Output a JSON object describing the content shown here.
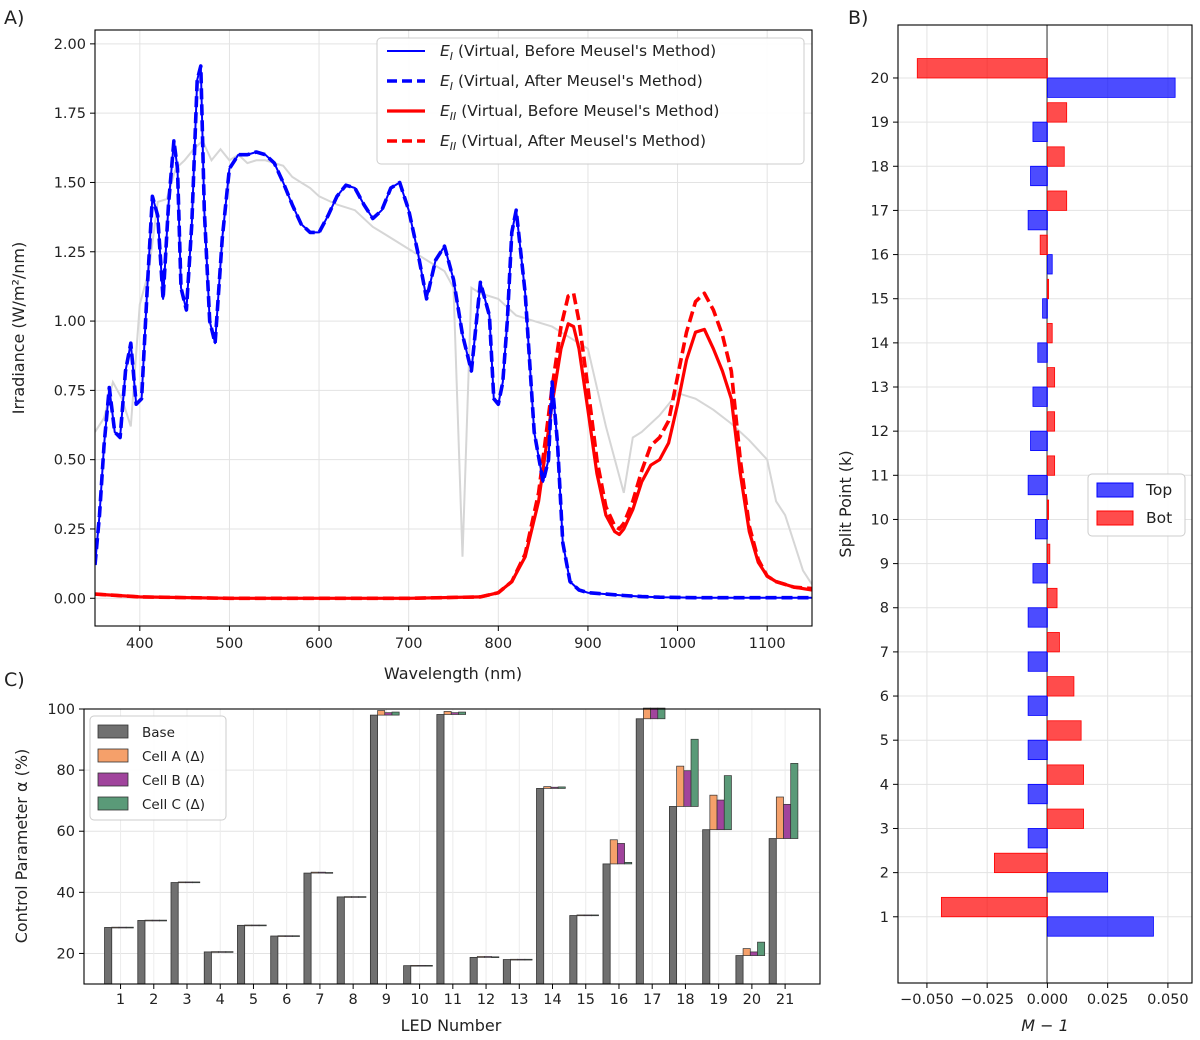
{
  "panels": {
    "a": "A)",
    "b": "B)",
    "c": "C)"
  },
  "chart_data": [
    {
      "type": "line",
      "panel": "A)",
      "xlabel": "Wavelength (nm)",
      "ylabel": "Irradiance (W/m²/nm)",
      "xlim": [
        350,
        1150
      ],
      "ylim": [
        -0.1,
        2.05
      ],
      "xticks": [
        400,
        500,
        600,
        700,
        800,
        900,
        1000,
        1100
      ],
      "yticks": [
        0.0,
        0.25,
        0.5,
        0.75,
        1.0,
        1.25,
        1.5,
        1.75,
        2.0
      ],
      "ytick_labels": [
        "0.00",
        "0.25",
        "0.50",
        "0.75",
        "1.00",
        "1.25",
        "1.50",
        "1.75",
        "2.00"
      ],
      "grid": true,
      "legend_position": "top-right",
      "reference_spectrum": {
        "color": "#d6d6d6",
        "x": [
          350,
          360,
          370,
          380,
          390,
          400,
          410,
          420,
          430,
          440,
          450,
          460,
          470,
          480,
          490,
          500,
          510,
          520,
          530,
          540,
          550,
          560,
          570,
          580,
          590,
          600,
          620,
          640,
          660,
          680,
          700,
          720,
          740,
          750,
          760,
          770,
          780,
          800,
          820,
          840,
          860,
          880,
          900,
          920,
          940,
          950,
          960,
          980,
          1000,
          1020,
          1040,
          1060,
          1080,
          1100,
          1110,
          1120,
          1130,
          1140,
          1150
        ],
        "y": [
          0.6,
          0.65,
          0.78,
          0.72,
          0.62,
          1.06,
          1.18,
          1.43,
          1.44,
          1.55,
          1.58,
          1.62,
          1.65,
          1.58,
          1.62,
          1.58,
          1.6,
          1.57,
          1.58,
          1.58,
          1.57,
          1.56,
          1.52,
          1.5,
          1.48,
          1.45,
          1.42,
          1.4,
          1.34,
          1.3,
          1.26,
          1.22,
          1.18,
          1.12,
          0.15,
          1.12,
          1.1,
          1.08,
          1.02,
          1.0,
          0.98,
          0.94,
          0.9,
          0.62,
          0.38,
          0.58,
          0.6,
          0.66,
          0.74,
          0.72,
          0.68,
          0.63,
          0.57,
          0.5,
          0.35,
          0.3,
          0.2,
          0.1,
          0.05
        ]
      },
      "legend": [
        "E_I (Virtual, Before Meusel's Method)",
        "E_I (Virtual, After Meusel's Method)",
        "E_II (Virtual, Before Meusel's Method)",
        "E_II (Virtual, After Meusel's Method)"
      ],
      "legend_display": [
        {
          "sym": "E",
          "sub": "I",
          "rest": " (Virtual, Before Meusel's Method)"
        },
        {
          "sym": "E",
          "sub": "I",
          "rest": " (Virtual, After Meusel's Method)"
        },
        {
          "sym": "E",
          "sub": "II",
          "rest": " (Virtual, Before Meusel's Method)"
        },
        {
          "sym": "E",
          "sub": "II",
          "rest": " (Virtual, After Meusel's Method)"
        }
      ],
      "series": [
        {
          "color": "#0000ff",
          "style": "solid",
          "x": [
            350,
            355,
            360,
            366,
            372,
            378,
            384,
            390,
            396,
            402,
            408,
            414,
            420,
            426,
            432,
            438,
            442,
            446,
            452,
            458,
            464,
            468,
            472,
            478,
            484,
            492,
            500,
            510,
            520,
            530,
            540,
            550,
            560,
            570,
            580,
            590,
            600,
            610,
            620,
            630,
            640,
            650,
            660,
            670,
            680,
            690,
            700,
            710,
            720,
            730,
            740,
            750,
            760,
            770,
            780,
            790,
            795,
            800,
            805,
            810,
            815,
            820,
            830,
            840,
            850,
            856,
            860,
            866,
            872,
            880,
            890,
            900,
            920,
            940,
            960,
            980,
            1000,
            1020,
            1050,
            1080,
            1100,
            1150
          ],
          "y": [
            0.12,
            0.3,
            0.55,
            0.76,
            0.6,
            0.58,
            0.82,
            0.92,
            0.7,
            0.72,
            1.1,
            1.45,
            1.38,
            1.08,
            1.42,
            1.65,
            1.55,
            1.12,
            1.04,
            1.35,
            1.87,
            1.92,
            1.4,
            1.0,
            0.92,
            1.3,
            1.55,
            1.6,
            1.6,
            1.61,
            1.6,
            1.57,
            1.5,
            1.42,
            1.35,
            1.32,
            1.32,
            1.38,
            1.45,
            1.49,
            1.48,
            1.42,
            1.37,
            1.4,
            1.48,
            1.5,
            1.4,
            1.25,
            1.08,
            1.22,
            1.27,
            1.15,
            0.95,
            0.82,
            1.14,
            1.02,
            0.72,
            0.7,
            0.78,
            1.0,
            1.32,
            1.4,
            1.1,
            0.6,
            0.42,
            0.5,
            0.78,
            0.56,
            0.2,
            0.06,
            0.03,
            0.02,
            0.015,
            0.01,
            0.006,
            0.004,
            0.003,
            0.002,
            0.002,
            0.002,
            0.002,
            0.002
          ]
        },
        {
          "color": "#0000ff",
          "style": "dashed",
          "x": [
            350,
            355,
            360,
            366,
            372,
            378,
            384,
            390,
            396,
            402,
            408,
            414,
            420,
            426,
            432,
            438,
            442,
            446,
            452,
            458,
            464,
            468,
            472,
            478,
            484,
            492,
            500,
            510,
            520,
            530,
            540,
            550,
            560,
            570,
            580,
            590,
            600,
            610,
            620,
            630,
            640,
            650,
            660,
            670,
            680,
            690,
            700,
            710,
            720,
            730,
            740,
            750,
            760,
            770,
            780,
            790,
            795,
            800,
            805,
            810,
            815,
            820,
            830,
            840,
            850,
            856,
            860,
            866,
            872,
            880,
            890,
            900,
            920,
            940,
            960,
            980,
            1000,
            1020,
            1050,
            1080,
            1100,
            1150
          ],
          "y": [
            0.12,
            0.3,
            0.55,
            0.76,
            0.6,
            0.58,
            0.82,
            0.92,
            0.7,
            0.72,
            1.1,
            1.45,
            1.38,
            1.08,
            1.42,
            1.65,
            1.55,
            1.12,
            1.04,
            1.35,
            1.87,
            1.92,
            1.4,
            1.0,
            0.92,
            1.3,
            1.55,
            1.6,
            1.6,
            1.61,
            1.6,
            1.57,
            1.5,
            1.42,
            1.35,
            1.32,
            1.32,
            1.38,
            1.45,
            1.49,
            1.48,
            1.42,
            1.37,
            1.4,
            1.48,
            1.5,
            1.4,
            1.25,
            1.08,
            1.22,
            1.27,
            1.15,
            0.95,
            0.82,
            1.14,
            1.02,
            0.72,
            0.7,
            0.78,
            1.0,
            1.32,
            1.4,
            1.1,
            0.6,
            0.42,
            0.5,
            0.78,
            0.56,
            0.2,
            0.06,
            0.03,
            0.02,
            0.015,
            0.01,
            0.006,
            0.004,
            0.003,
            0.002,
            0.002,
            0.002,
            0.002,
            0.002
          ]
        },
        {
          "color": "#ff0000",
          "style": "solid",
          "x": [
            350,
            400,
            500,
            600,
            700,
            780,
            800,
            815,
            830,
            845,
            860,
            870,
            878,
            884,
            890,
            900,
            910,
            920,
            930,
            935,
            940,
            950,
            960,
            970,
            980,
            990,
            1000,
            1010,
            1020,
            1030,
            1040,
            1050,
            1060,
            1070,
            1080,
            1090,
            1100,
            1110,
            1120,
            1130,
            1150
          ],
          "y": [
            0.015,
            0.005,
            0.0,
            0.0,
            0.0,
            0.005,
            0.02,
            0.06,
            0.15,
            0.35,
            0.7,
            0.9,
            0.99,
            0.98,
            0.9,
            0.68,
            0.45,
            0.3,
            0.24,
            0.23,
            0.25,
            0.32,
            0.42,
            0.48,
            0.5,
            0.56,
            0.7,
            0.86,
            0.96,
            0.97,
            0.9,
            0.82,
            0.72,
            0.45,
            0.24,
            0.13,
            0.08,
            0.06,
            0.05,
            0.04,
            0.03
          ]
        },
        {
          "color": "#ff0000",
          "style": "dashed",
          "x": [
            350,
            400,
            500,
            600,
            700,
            780,
            800,
            815,
            830,
            845,
            860,
            870,
            878,
            884,
            890,
            900,
            910,
            920,
            930,
            935,
            940,
            950,
            960,
            970,
            980,
            990,
            1000,
            1010,
            1020,
            1030,
            1040,
            1050,
            1060,
            1070,
            1080,
            1090,
            1100,
            1110,
            1120,
            1130,
            1150
          ],
          "y": [
            0.015,
            0.005,
            0.0,
            0.0,
            0.0,
            0.005,
            0.02,
            0.06,
            0.16,
            0.38,
            0.76,
            0.98,
            1.09,
            1.1,
            1.0,
            0.76,
            0.5,
            0.33,
            0.26,
            0.25,
            0.27,
            0.35,
            0.46,
            0.55,
            0.58,
            0.64,
            0.8,
            0.96,
            1.07,
            1.1,
            1.04,
            0.95,
            0.82,
            0.5,
            0.26,
            0.14,
            0.08,
            0.06,
            0.05,
            0.04,
            0.035
          ]
        }
      ]
    },
    {
      "type": "bar",
      "orientation": "horizontal",
      "panel": "B)",
      "xlabel": "M − 1",
      "ylabel": "Split Point (k)",
      "xlim": [
        -0.062,
        0.06
      ],
      "ylim": [
        -0.5,
        21.2
      ],
      "xticks": [
        -0.05,
        -0.025,
        0.0,
        0.025,
        0.05
      ],
      "xtick_labels": [
        "−0.050",
        "−0.025",
        "0.000",
        "0.025",
        "0.050"
      ],
      "yticks": [
        1,
        2,
        3,
        4,
        5,
        6,
        7,
        8,
        9,
        10,
        11,
        12,
        13,
        14,
        15,
        16,
        17,
        18,
        19,
        20
      ],
      "grid": true,
      "legend_position": "center-right",
      "categories": [
        1,
        2,
        3,
        4,
        5,
        6,
        7,
        8,
        9,
        10,
        11,
        12,
        13,
        14,
        15,
        16,
        17,
        18,
        19,
        20
      ],
      "series": [
        {
          "name": "Top",
          "color": "#0000ff",
          "offset": -0.22,
          "values": [
            0.044,
            0.025,
            -0.008,
            -0.008,
            -0.008,
            -0.008,
            -0.008,
            -0.008,
            -0.006,
            -0.005,
            -0.008,
            -0.007,
            -0.006,
            -0.004,
            -0.002,
            0.002,
            -0.008,
            -0.007,
            -0.006,
            0.053
          ]
        },
        {
          "name": "Bot",
          "color": "#ff0000",
          "offset": 0.22,
          "values": [
            -0.044,
            -0.022,
            0.015,
            0.015,
            0.014,
            0.011,
            0.005,
            0.004,
            0.001,
            0.0005,
            0.003,
            0.003,
            0.003,
            0.002,
            0.0005,
            -0.003,
            0.008,
            0.007,
            0.008,
            -0.054
          ]
        }
      ]
    },
    {
      "type": "bar",
      "panel": "C)",
      "xlabel": "LED Number",
      "ylabel": "Control Parameter α (%)",
      "ylim": [
        10,
        100
      ],
      "yticks": [
        20,
        40,
        60,
        80,
        100
      ],
      "grid": true,
      "legend_position": "top-left",
      "categories": [
        "1",
        "2",
        "3",
        "4",
        "5",
        "6",
        "7",
        "8",
        "9",
        "10",
        "11",
        "12",
        "13",
        "14",
        "15",
        "16",
        "17",
        "18",
        "19",
        "20",
        "21"
      ],
      "series": [
        {
          "name": "Base",
          "color": "#707070",
          "values": [
            28.5,
            30.8,
            43.2,
            20.5,
            29.2,
            25.7,
            46.3,
            38.5,
            98.0,
            16.0,
            98.2,
            18.7,
            18.0,
            74.0,
            32.4,
            49.3,
            96.8,
            68.1,
            60.5,
            19.3,
            57.6
          ]
        },
        {
          "name": "Cell A (Δ)",
          "color": "#f5a06a",
          "values": [
            0.1,
            0.1,
            0.2,
            0.1,
            0.1,
            0.1,
            0.3,
            0.1,
            1.5,
            0.1,
            1.0,
            0.3,
            0.1,
            0.6,
            0.2,
            7.9,
            5.0,
            13.2,
            11.3,
            2.3,
            13.6
          ]
        },
        {
          "name": "Cell B (Δ)",
          "color": "#a0449c",
          "values": [
            0.1,
            0.1,
            0.2,
            0.1,
            0.1,
            0.1,
            0.3,
            0.1,
            0.8,
            0.1,
            0.6,
            0.3,
            0.1,
            0.4,
            0.2,
            6.7,
            4.0,
            11.7,
            9.7,
            1.2,
            11.2
          ]
        },
        {
          "name": "Cell C (Δ)",
          "color": "#5a9a78",
          "values": [
            0.1,
            0.1,
            0.2,
            0.1,
            0.1,
            0.1,
            0.2,
            0.1,
            1.0,
            0.1,
            0.8,
            0.2,
            0.1,
            0.5,
            0.2,
            0.5,
            4.5,
            22.0,
            17.7,
            4.4,
            24.6
          ]
        }
      ]
    }
  ]
}
